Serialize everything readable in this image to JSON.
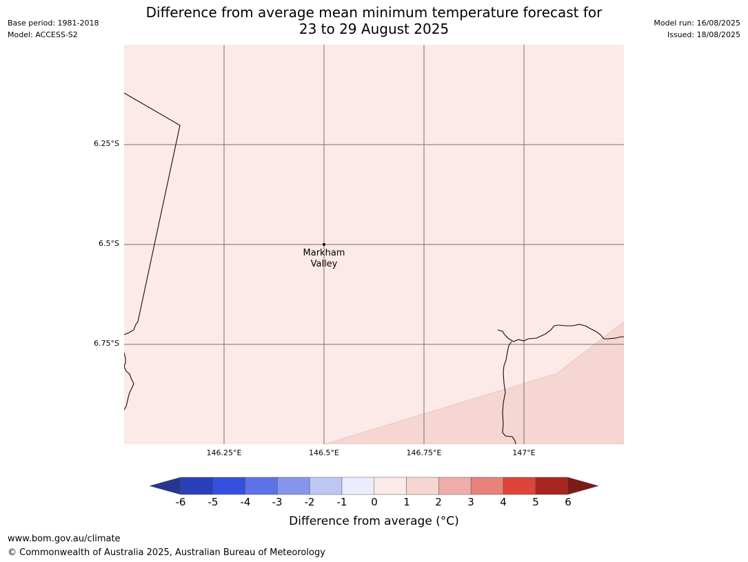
{
  "header": {
    "title_line1": "Difference from average mean minimum temperature forecast for",
    "title_line2": "23 to 29 August 2025",
    "base_period": "Base period: 1981-2018",
    "model": "Model: ACCESS-S2",
    "model_run": "Model run: 16/08/2025",
    "issued": "Issued: 18/08/2025"
  },
  "map": {
    "lat_labels": [
      "6.25°S",
      "6.5°S",
      "6.75°S"
    ],
    "lon_labels": [
      "146.25°E",
      "146.5°E",
      "146.75°E",
      "147°E"
    ],
    "place": {
      "name_line1": "Markham",
      "name_line2": "Valley",
      "lon": 146.5,
      "lat": -6.5
    },
    "fill_colors": {
      "zero_to_one": "#fbeae8",
      "one_to_two": "#f5d6d2"
    }
  },
  "colorbar": {
    "ticks": [
      "-6",
      "-5",
      "-4",
      "-3",
      "-2",
      "-1",
      "0",
      "1",
      "2",
      "3",
      "4",
      "5",
      "6"
    ],
    "colors": [
      "#27368e",
      "#2940b8",
      "#3450de",
      "#5c72e6",
      "#8796ec",
      "#bec6f4",
      "#ebedfd",
      "#fbeae8",
      "#f5d6d2",
      "#eeada8",
      "#e8827a",
      "#dd4538",
      "#a8261e",
      "#7c1a16"
    ],
    "label": "Difference from average (°C)"
  },
  "footer": {
    "url": "www.bom.gov.au/climate",
    "copyright": "© Commonwealth of Australia 2025, Australian Bureau of Meteorology"
  }
}
